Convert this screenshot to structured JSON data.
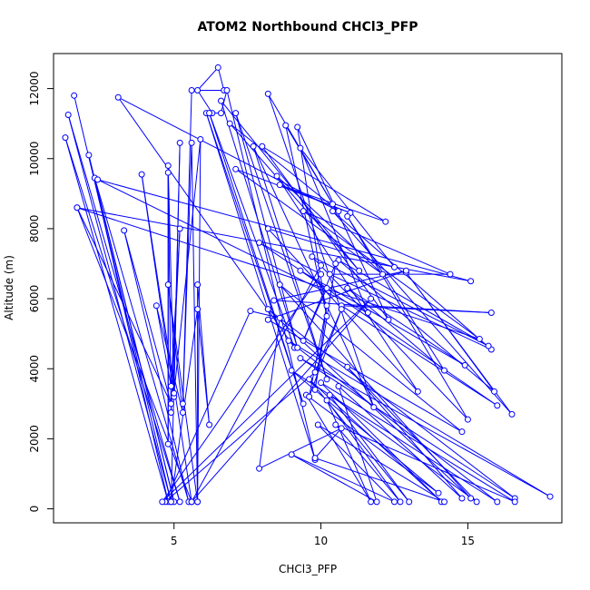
{
  "chart_data": {
    "type": "line",
    "title": "ATOM2 Northbound CHCl3_PFP",
    "xlabel": "CHCl3_PFP",
    "ylabel": "Altitude (m)",
    "xlim": [
      0.9,
      18.2
    ],
    "ylim": [
      -400,
      13000
    ],
    "x_ticks": [
      5,
      10,
      15
    ],
    "y_ticks": [
      0,
      2000,
      4000,
      6000,
      8000,
      10000,
      12000
    ],
    "grid": false,
    "legend": "none",
    "line_style": "lines with open circle markers",
    "series": [
      {
        "color": "#0000ff",
        "points": [
          [
            1.6,
            11800
          ],
          [
            4.9,
            200
          ],
          [
            1.4,
            11250
          ],
          [
            5.2,
            200
          ],
          [
            1.3,
            10600
          ],
          [
            4.8,
            200
          ],
          [
            2.1,
            10100
          ],
          [
            5.0,
            200
          ],
          [
            2.3,
            9450
          ],
          [
            5.5,
            200
          ],
          [
            3.3,
            7950
          ],
          [
            4.9,
            3000
          ],
          [
            1.7,
            8600
          ],
          [
            5.6,
            200
          ],
          [
            3.9,
            9550
          ],
          [
            5.0,
            3200
          ],
          [
            4.8,
            9800
          ],
          [
            4.8,
            1850
          ],
          [
            4.8,
            9600
          ],
          [
            4.9,
            2750
          ],
          [
            5.2,
            8000
          ],
          [
            4.9,
            3500
          ],
          [
            4.4,
            5800
          ],
          [
            5.3,
            2750
          ],
          [
            4.8,
            6400
          ],
          [
            5.8,
            200
          ],
          [
            5.8,
            6400
          ],
          [
            6.2,
            2400
          ],
          [
            5.8,
            5700
          ],
          [
            4.9,
            200
          ],
          [
            5.2,
            10450
          ],
          [
            5.0,
            3300
          ],
          [
            5.9,
            10550
          ],
          [
            5.8,
            200
          ],
          [
            5.6,
            10450
          ],
          [
            5.3,
            3000
          ],
          [
            5.6,
            11950
          ],
          [
            6.7,
            11950
          ],
          [
            6.5,
            12600
          ],
          [
            5.8,
            11950
          ],
          [
            6.3,
            11300
          ],
          [
            6.6,
            11300
          ],
          [
            6.8,
            11950
          ],
          [
            9.8,
            1400
          ],
          [
            6.1,
            11300
          ],
          [
            9.4,
            3000
          ],
          [
            6.2,
            11300
          ],
          [
            9.1,
            4600
          ],
          [
            3.1,
            11750
          ],
          [
            10.6,
            8500
          ],
          [
            6.9,
            11000
          ],
          [
            11.3,
            6800
          ],
          [
            6.6,
            11650
          ],
          [
            9.2,
            4600
          ],
          [
            7.1,
            11300
          ],
          [
            10.2,
            3700
          ],
          [
            7.7,
            10350
          ],
          [
            11.8,
            2900
          ],
          [
            8.2,
            11850
          ],
          [
            10.4,
            8700
          ],
          [
            8.8,
            10950
          ],
          [
            10.2,
            5500
          ],
          [
            9.2,
            10900
          ],
          [
            12.3,
            5400
          ],
          [
            8.0,
            10350
          ],
          [
            12.2,
            8200
          ],
          [
            8.6,
            9250
          ],
          [
            11.0,
            8450
          ],
          [
            7.1,
            9700
          ],
          [
            12.1,
            6700
          ],
          [
            8.5,
            9500
          ],
          [
            13.3,
            3350
          ],
          [
            8.2,
            8000
          ],
          [
            12.5,
            6900
          ],
          [
            9.3,
            10300
          ],
          [
            11.6,
            5600
          ],
          [
            2.4,
            9400
          ],
          [
            15.1,
            6500
          ],
          [
            1.7,
            8600
          ],
          [
            15.4,
            4850
          ],
          [
            9.4,
            8500
          ],
          [
            14.4,
            6700
          ],
          [
            10.3,
            6700
          ],
          [
            15.8,
            4550
          ],
          [
            10.4,
            8500
          ],
          [
            16.5,
            2700
          ],
          [
            12.9,
            6750
          ],
          [
            15.9,
            3350
          ],
          [
            10.6,
            7100
          ],
          [
            15.7,
            4650
          ],
          [
            9.7,
            7200
          ],
          [
            15.0,
            2550
          ],
          [
            10.9,
            8350
          ],
          [
            14.2,
            3950
          ],
          [
            10.9,
            6300
          ],
          [
            14.9,
            4100
          ],
          [
            9.3,
            6800
          ],
          [
            16.0,
            2950
          ],
          [
            10.7,
            5800
          ],
          [
            15.8,
            5600
          ],
          [
            8.4,
            5950
          ],
          [
            12.9,
            6800
          ],
          [
            8.2,
            5400
          ],
          [
            14.8,
            2200
          ],
          [
            8.6,
            6400
          ],
          [
            15.1,
            300
          ],
          [
            8.2,
            5700
          ],
          [
            16.6,
            300
          ],
          [
            9.3,
            4300
          ],
          [
            17.8,
            350
          ],
          [
            8.9,
            4800
          ],
          [
            16.0,
            200
          ],
          [
            9.0,
            3950
          ],
          [
            14.0,
            450
          ],
          [
            9.5,
            3250
          ],
          [
            11.7,
            200
          ],
          [
            10.2,
            3100
          ],
          [
            12.7,
            200
          ],
          [
            10.5,
            2400
          ],
          [
            16.6,
            200
          ],
          [
            10.0,
            3600
          ],
          [
            14.1,
            200
          ],
          [
            9.6,
            3700
          ],
          [
            13.0,
            200
          ],
          [
            10.3,
            3250
          ],
          [
            15.3,
            200
          ],
          [
            10.9,
            4050
          ],
          [
            14.8,
            300
          ],
          [
            10.6,
            3500
          ],
          [
            11.9,
            200
          ],
          [
            9.0,
            1550
          ],
          [
            12.5,
            200
          ],
          [
            9.9,
            2400
          ],
          [
            14.2,
            200
          ],
          [
            9.8,
            1450
          ],
          [
            10.7,
            2300
          ],
          [
            7.9,
            1150
          ],
          [
            8.6,
            5450
          ],
          [
            7.6,
            5650
          ],
          [
            4.7,
            200
          ],
          [
            9.8,
            3900
          ],
          [
            10.7,
            5700
          ],
          [
            9.6,
            3200
          ],
          [
            10.2,
            5800
          ],
          [
            9.8,
            3400
          ],
          [
            10.5,
            7000
          ],
          [
            9.4,
            4800
          ],
          [
            10.2,
            6300
          ],
          [
            7.9,
            7600
          ],
          [
            10.0,
            6700
          ],
          [
            4.6,
            200
          ],
          [
            11.7,
            6000
          ],
          [
            5.6,
            200
          ],
          [
            10.0,
            6950
          ]
        ]
      }
    ]
  }
}
